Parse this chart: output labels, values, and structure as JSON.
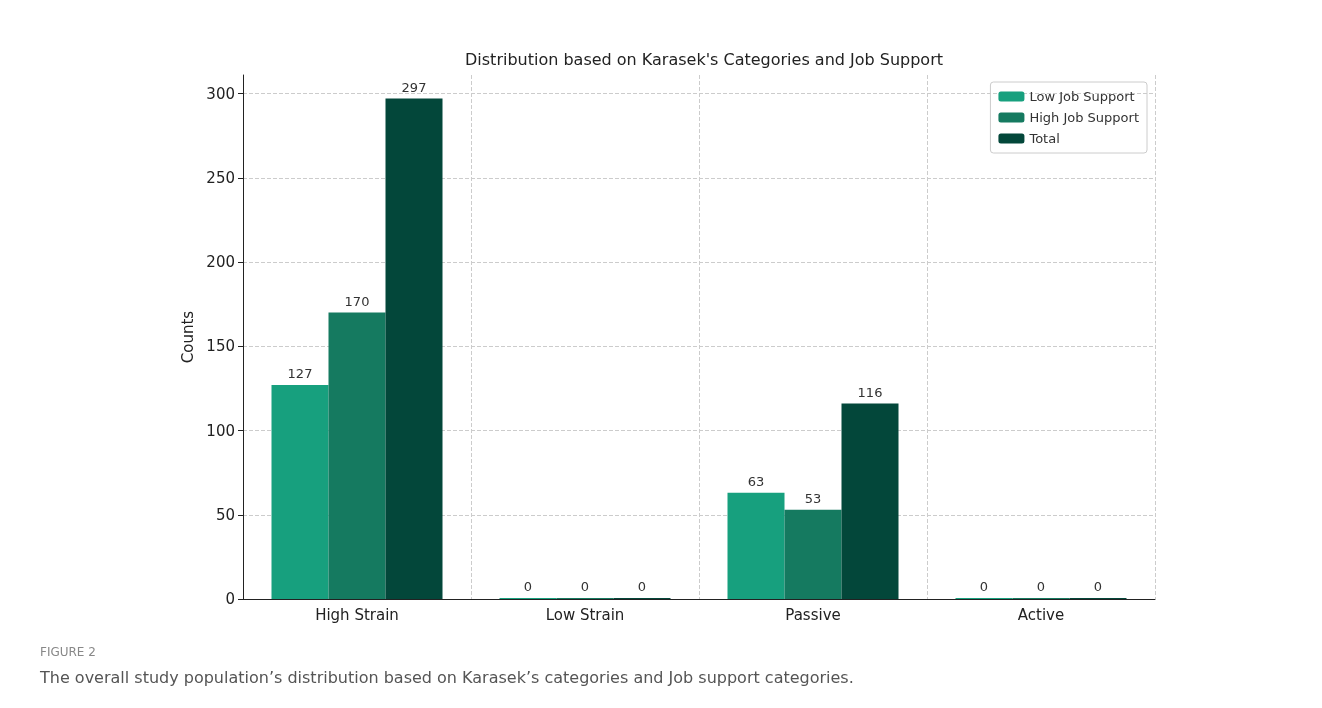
{
  "chart_data": {
    "type": "bar",
    "title": "Distribution based on Karasek's Categories and Job Support",
    "ylabel": "Counts",
    "categories": [
      "High Strain",
      "Low Strain",
      "Passive",
      "Active"
    ],
    "series": [
      {
        "name": "Low Job Support",
        "color": "#17a07e",
        "values": [
          127,
          0,
          63,
          0
        ]
      },
      {
        "name": "High Job Support",
        "color": "#157a60",
        "values": [
          170,
          0,
          53,
          0
        ]
      },
      {
        "name": "Total",
        "color": "#03473a",
        "values": [
          297,
          0,
          116,
          0
        ]
      }
    ],
    "ylim": [
      0,
      311
    ],
    "yticks": [
      0,
      50,
      100,
      150,
      200,
      250,
      300
    ],
    "grid": true,
    "legend": "top right",
    "data_labels": true,
    "annotations": [
      "FIGURE 2",
      "The overall study population’s distribution based on Karasek’s categories and Job support categories."
    ]
  }
}
